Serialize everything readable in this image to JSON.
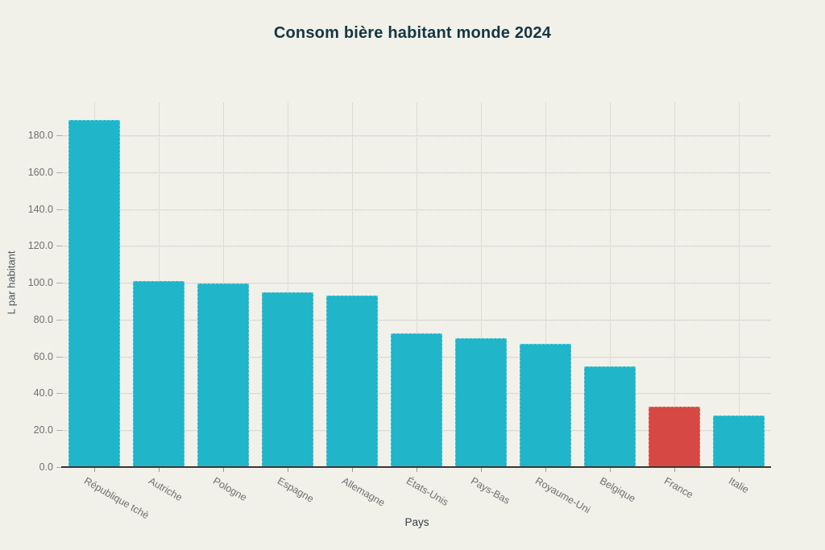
{
  "chart": {
    "title": "Consom bière habitant monde 2024",
    "x_axis_title": "Pays",
    "y_axis_title": "L par habitant"
  },
  "chart_data": {
    "type": "bar",
    "title": "Consom bière habitant monde 2024",
    "xlabel": "Pays",
    "ylabel": "L par habitant",
    "categories": [
      "République tchè",
      "Autriche",
      "Pologne",
      "Espagne",
      "Allemagne",
      "États-Unis",
      "Pays-Bas",
      "Royaume-Uni",
      "Belgique",
      "France",
      "Italie"
    ],
    "values": [
      188.5,
      101,
      99.5,
      95,
      93,
      72.5,
      70,
      67,
      54.5,
      33,
      28
    ],
    "ylim": [
      0,
      198
    ],
    "yticks": [
      0,
      20,
      40,
      60,
      80,
      100,
      120,
      140,
      160,
      180
    ],
    "ytick_labels": [
      "0.0",
      "20.0",
      "40.0",
      "60.0",
      "80.0",
      "100.0",
      "120.0",
      "140.0",
      "160.0",
      "180.0"
    ],
    "grid": true,
    "legend": null,
    "bar_color_default": "#20b5c9",
    "bar_color_highlight": "#d64843",
    "highlight_category": "France",
    "colors": [
      "#20b5c9",
      "#20b5c9",
      "#20b5c9",
      "#20b5c9",
      "#20b5c9",
      "#20b5c9",
      "#20b5c9",
      "#20b5c9",
      "#20b5c9",
      "#d64843",
      "#20b5c9"
    ],
    "background_color": "#f1f1ea",
    "gridline_color": "#dcdcd4",
    "axis_line_color": "#3a3732",
    "title_color": "#143642",
    "tick_label_color": "#6f6f6f"
  }
}
